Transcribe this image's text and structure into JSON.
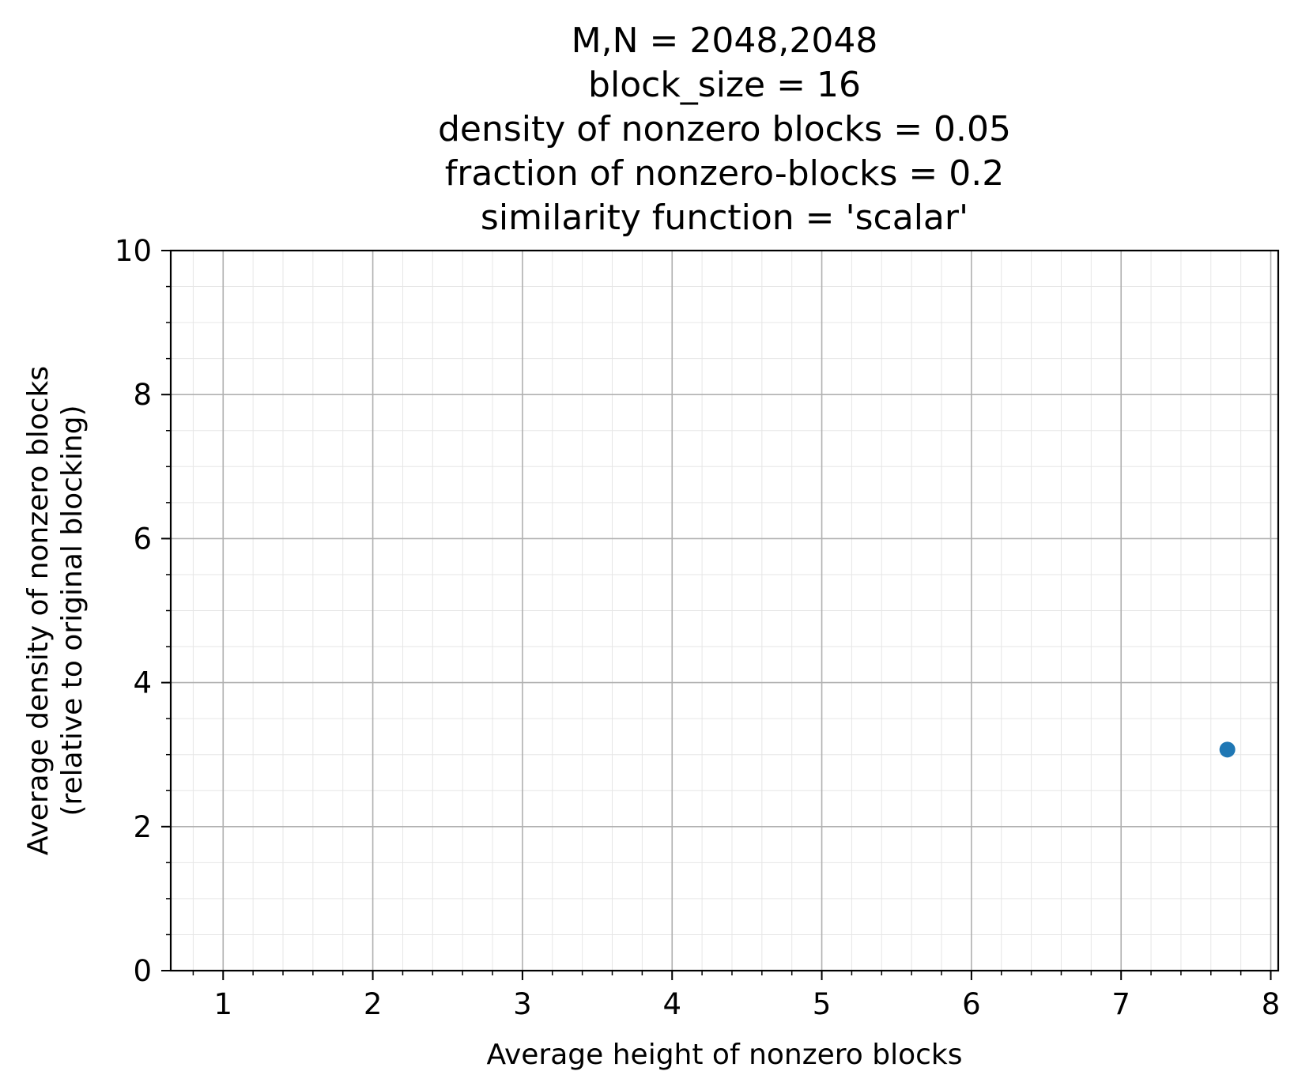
{
  "chart_data": {
    "type": "scatter",
    "title": [
      "M,N = 2048,2048",
      "block_size = 16",
      "density of nonzero blocks = 0.05",
      "fraction of nonzero-blocks = 0.2",
      "similarity function = 'scalar'"
    ],
    "xlabel": "Average height of nonzero blocks",
    "ylabel": [
      "Average density of nonzero blocks",
      "(relative to original blocking)"
    ],
    "xlim": [
      0.65,
      8.05
    ],
    "ylim": [
      0,
      10
    ],
    "xticks": [
      "1",
      "2",
      "3",
      "4",
      "5",
      "6",
      "7",
      "8"
    ],
    "yticks": [
      "0",
      "2",
      "4",
      "6",
      "8",
      "10"
    ],
    "grid": {
      "major": true,
      "minor": true
    },
    "series": [
      {
        "points": [
          {
            "x": 7.71,
            "y": 3.07
          }
        ],
        "color": "#1f77b4"
      }
    ]
  }
}
